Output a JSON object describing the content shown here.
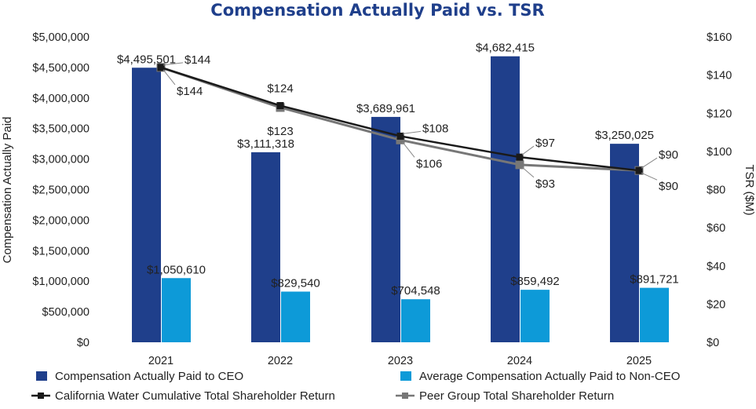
{
  "chart_data": {
    "type": "bar",
    "title": "Compensation Actually Paid vs. TSR",
    "categories": [
      "2021",
      "2022",
      "2023",
      "2024",
      "2025"
    ],
    "ylabel": "Compensation Actually Paid",
    "y2label": "TSR ($M)",
    "ylim": [
      0,
      5000000
    ],
    "y2lim": [
      0,
      160
    ],
    "yticks": [
      "$0",
      "$500,000",
      "$1,000,000",
      "$1,500,000",
      "$2,000,000",
      "$2,500,000",
      "$3,000,000",
      "$3,500,000",
      "$4,000,000",
      "$4,500,000",
      "$5,000,000"
    ],
    "y2ticks": [
      "$0",
      "$20",
      "$40",
      "$60",
      "$80",
      "$100",
      "$120",
      "$140",
      "$160"
    ],
    "grid": false,
    "legend_position": "bottom",
    "series": [
      {
        "name": "Compensation Actually Paid to CEO",
        "kind": "bar",
        "color": "#1f3f8b",
        "values": [
          4495501,
          3111318,
          3689961,
          4682415,
          3250025
        ],
        "labels": [
          "$4,495,501",
          "$3,111,318",
          "$3,689,961",
          "$4,682,415",
          "$3,250,025"
        ]
      },
      {
        "name": "Average Compensation Actually Paid to Non-CEO",
        "kind": "bar",
        "color": "#0d9ad8",
        "values": [
          1050610,
          829540,
          704548,
          859492,
          891721
        ],
        "labels": [
          "$1,050,610",
          "$829,540",
          "$704,548",
          "$859,492",
          "$891,721"
        ]
      },
      {
        "name": "California Water Cumulative Total Shareholder Return",
        "kind": "line",
        "axis": "right",
        "color": "#1a1a1a",
        "values": [
          144,
          124,
          108,
          97,
          90
        ],
        "labels": [
          "$144",
          "$124",
          "$108",
          "$97",
          "$90"
        ]
      },
      {
        "name": "Peer Group Total Shareholder Return",
        "kind": "line",
        "axis": "right",
        "color": "#777777",
        "values": [
          144,
          123,
          106,
          93,
          90
        ],
        "labels": [
          "$144",
          "$123",
          "$106",
          "$93",
          "$90"
        ]
      }
    ]
  }
}
